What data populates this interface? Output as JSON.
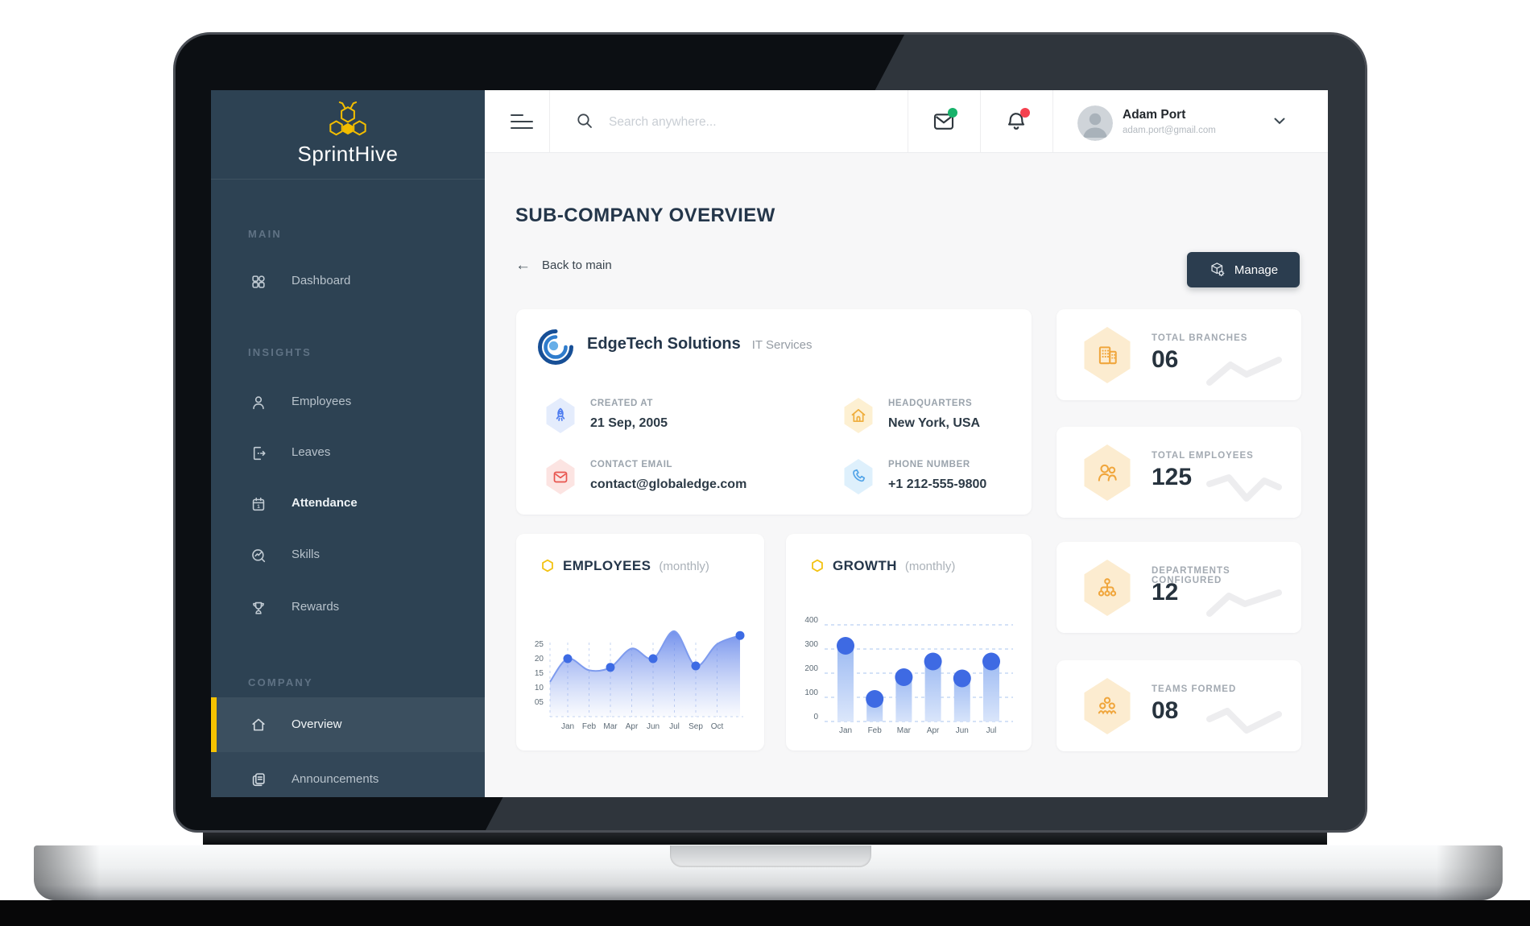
{
  "brand": {
    "name": "SprintHive"
  },
  "sidebar": {
    "section_main": "MAIN",
    "section_insights": "INSIGHTS",
    "section_company": "COMPANY",
    "dashboard": "Dashboard",
    "employees": "Employees",
    "leaves": "Leaves",
    "attendance": "Attendance",
    "skills": "Skills",
    "rewards": "Rewards",
    "overview": "Overview",
    "announcements": "Announcements"
  },
  "header": {
    "search_placeholder": "Search anywhere...",
    "user": {
      "name": "Adam Port",
      "email": "adam.port@gmail.com"
    }
  },
  "page": {
    "title": "SUB-COMPANY OVERVIEW",
    "back": "Back to main",
    "manage": "Manage"
  },
  "company": {
    "name": "EdgeTech Solutions",
    "category": "IT Services",
    "details": [
      {
        "label": "CREATED AT",
        "value": "21 Sep, 2005",
        "icon": "rocket-icon"
      },
      {
        "label": "HEADQUARTERS",
        "value": "New York, USA",
        "icon": "home-icon"
      },
      {
        "label": "CONTACT EMAIL",
        "value": "contact@globaledge.com",
        "icon": "envelope-icon"
      },
      {
        "label": "PHONE NUMBER",
        "value": "+1 212-555-9800",
        "icon": "phone-icon"
      }
    ]
  },
  "stats": [
    {
      "label": "TOTAL BRANCHES",
      "value": "06",
      "icon": "buildings-icon"
    },
    {
      "label": "TOTAL EMPLOYEES",
      "value": "125",
      "icon": "people-icon"
    },
    {
      "label": "DEPARTMENTS CONFIGURED",
      "value": "12",
      "icon": "hierarchy-icon"
    },
    {
      "label": "TEAMS FORMED",
      "value": "08",
      "icon": "team-icon"
    }
  ],
  "chart_data": [
    {
      "type": "area",
      "title": "EMPLOYEES",
      "subtitle": "(monthly)",
      "categories": [
        "Jan",
        "Feb",
        "Mar",
        "Apr",
        "Jun",
        "Jul",
        "Sep",
        "Oct"
      ],
      "values": [
        20,
        16,
        17,
        23.5,
        20,
        29.5,
        17.5,
        25
      ],
      "curve_start": 12,
      "curve_end": 28,
      "dot_months": [
        "Jan",
        "Mar",
        "Jun",
        "Sep"
      ],
      "dot_at_end": true,
      "yticks": [
        "25",
        "20",
        "15",
        "10",
        "05"
      ],
      "ytick_values": [
        25,
        20,
        15,
        10,
        5
      ],
      "ylim": [
        0,
        30
      ],
      "grid": "vertical-dashed",
      "legend": "none"
    },
    {
      "type": "bar",
      "title": "GROWTH",
      "subtitle": "(monthly)",
      "categories": [
        "Jan",
        "Feb",
        "Mar",
        "Apr",
        "Jun",
        "Jul"
      ],
      "values": [
        330,
        110,
        200,
        265,
        195,
        265
      ],
      "yticks": [
        400,
        300,
        200,
        100,
        0
      ],
      "ylim": [
        0,
        400
      ],
      "grid": "horizontal-dashed",
      "legend": "none"
    }
  ],
  "colors": {
    "accent_yellow": "#f7c300",
    "sidebar_navy": "#2d4253",
    "primary_blue": "#3d6be4",
    "bar_light_blue": "#9bb9f2",
    "unread_green": "#17b26a",
    "alert_red": "#f5414f",
    "dark_text": "#24364a",
    "stat_hex_bg": "#fcecd0",
    "stat_icon_orange": "#f0a63c"
  }
}
